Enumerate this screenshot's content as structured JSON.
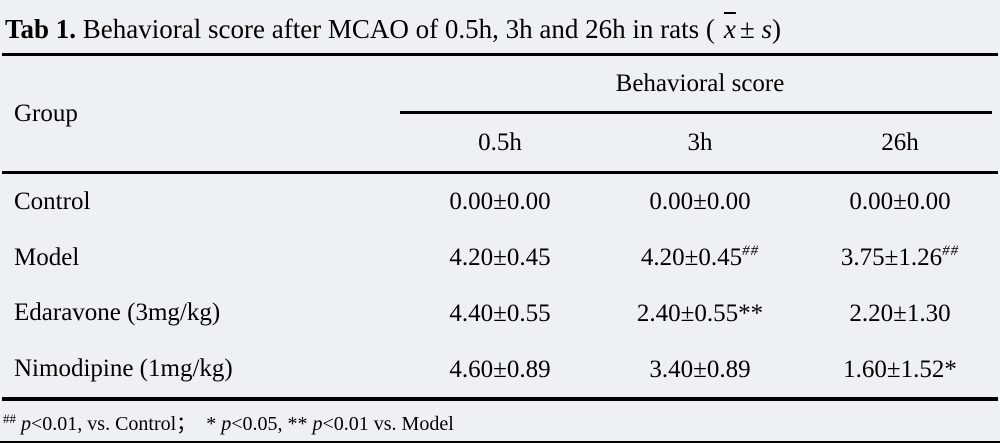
{
  "title": {
    "tag": "Tab 1.",
    "text": " Behavioral score after MCAO of 0.5h, 3h and 26h in rats (",
    "xbar": "x",
    "pm": "±",
    "s": "s",
    "close": ")"
  },
  "table": {
    "group_header": "Group",
    "span_header": "Behavioral score",
    "time_columns": [
      "0.5h",
      "3h",
      "26h"
    ],
    "rows": [
      {
        "group": "Control",
        "c1": "0.00±0.00",
        "c1sup": "",
        "c2": "0.00±0.00",
        "c2sup": "",
        "c3": "0.00±0.00",
        "c3sup": ""
      },
      {
        "group": "Model",
        "c1": "4.20±0.45",
        "c1sup": "",
        "c2": "4.20±0.45",
        "c2sup": "##",
        "c3": "3.75±1.26",
        "c3sup": "##"
      },
      {
        "group": "Edaravone (3mg/kg)",
        "c1": "4.40±0.55",
        "c1sup": "",
        "c2": "2.40±0.55**",
        "c2sup": "",
        "c3": "2.20±1.30",
        "c3sup": ""
      },
      {
        "group": "Nimodipine (1mg/kg)",
        "c1": "4.60±0.89",
        "c1sup": "",
        "c2": "3.40±0.89",
        "c2sup": "",
        "c3": "1.60±1.52*",
        "c3sup": ""
      }
    ]
  },
  "footnote": {
    "marker": "##",
    "p1": "p",
    "t1": "<0.01, vs. Control；",
    "star": "* ",
    "p2": "p",
    "t2": "<0.05, ** ",
    "p3": "p",
    "t3": "<0.01 vs. Model"
  },
  "colors": {
    "background": "#eef1f4",
    "text": "#000000",
    "rule": "#000000"
  }
}
